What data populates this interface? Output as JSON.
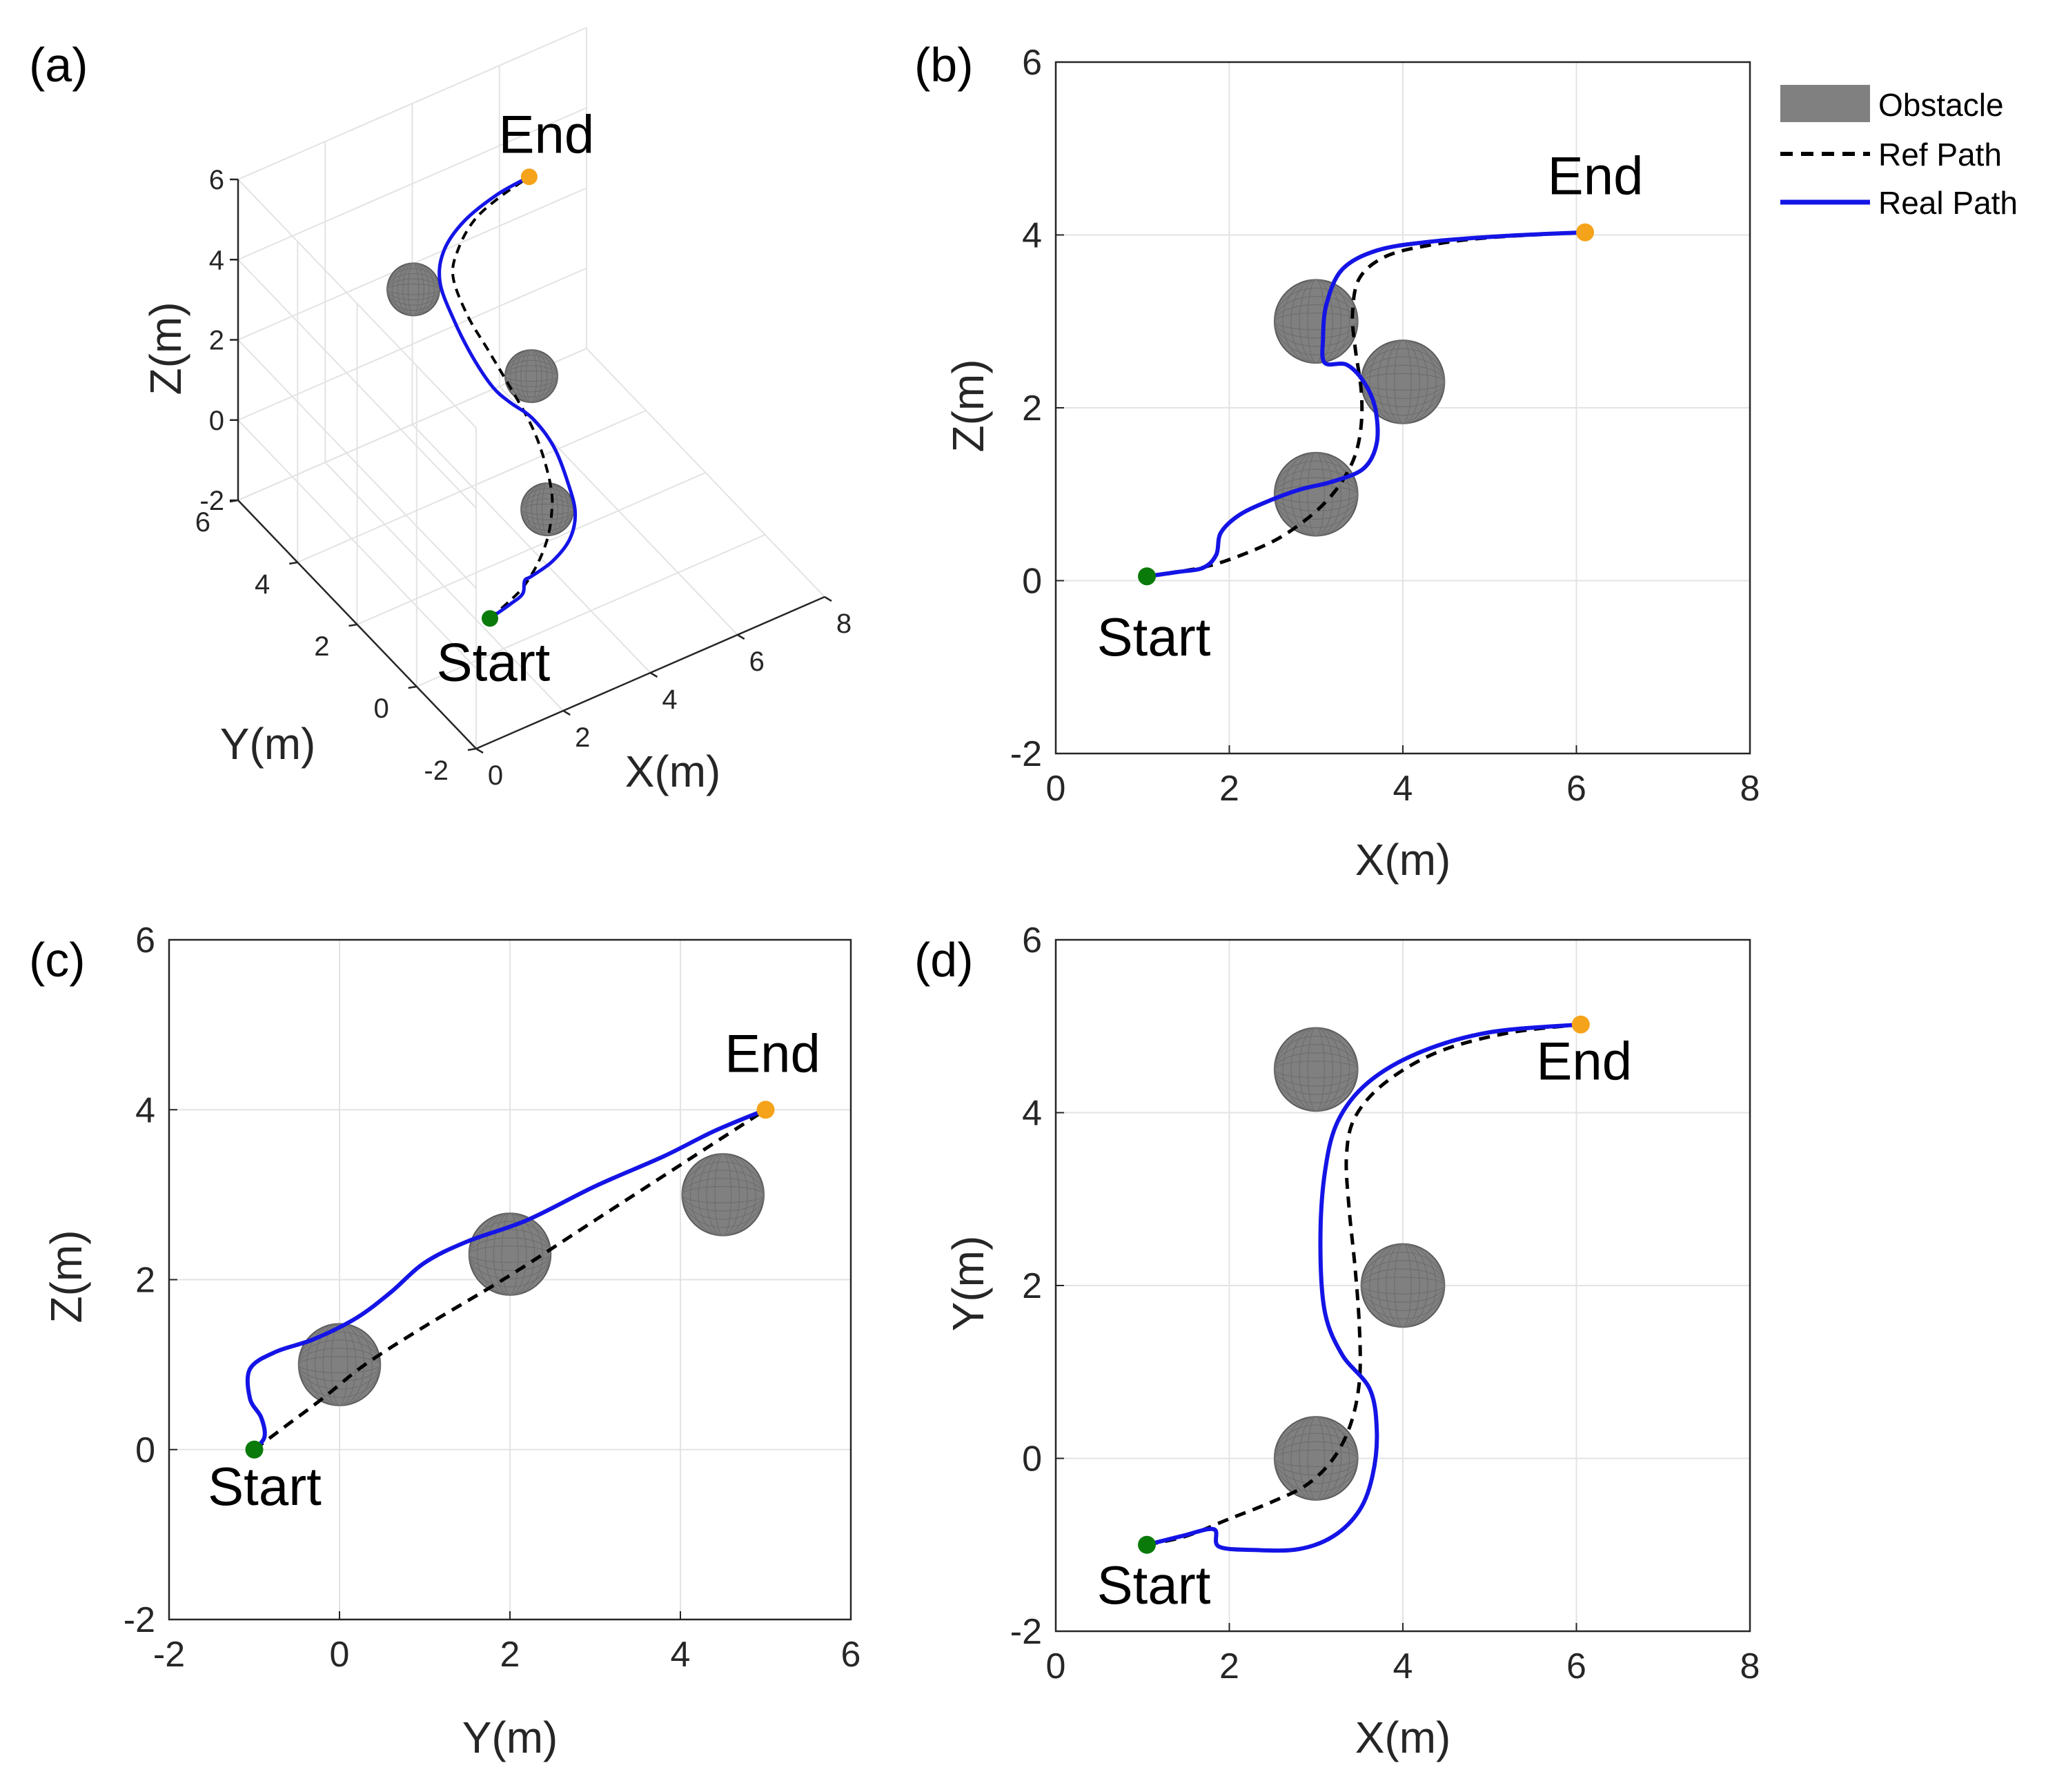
{
  "legend": {
    "obstacle": "Obstacle",
    "ref": "Ref Path",
    "real": "Real Path"
  },
  "colors": {
    "real": "#1414e6",
    "ref": "#000000",
    "obstacle_fill": "#808080",
    "obstacle_edge": "#5a5a5a",
    "start": "#0a7a0a",
    "end": "#f5a31a",
    "grid": "#e3e3e3"
  },
  "chart_data": [
    {
      "id": "a",
      "panel_label": "(a)",
      "type": "line3d",
      "xlabel": "X(m)",
      "ylabel": "Y(m)",
      "zlabel": "Z(m)",
      "xlim": [
        0,
        8
      ],
      "ylim": [
        -2,
        6
      ],
      "zlim": [
        -2,
        6
      ],
      "xticks": [
        "0",
        "2",
        "4",
        "6",
        "8"
      ],
      "yticks": [
        "-2",
        "0",
        "2",
        "4",
        "6"
      ],
      "zticks": [
        "-2",
        "0",
        "2",
        "4",
        "6"
      ],
      "start": {
        "label": "Start",
        "x": 1,
        "y": -1,
        "z": 0
      },
      "end": {
        "label": "End",
        "x": 6,
        "y": 5,
        "z": 4
      },
      "obstacles": [
        {
          "x": 3,
          "y": 0,
          "z": 1,
          "r": 0.46
        },
        {
          "x": 4,
          "y": 2,
          "z": 2.3,
          "r": 0.46
        },
        {
          "x": 3,
          "y": 4.5,
          "z": 3,
          "r": 0.46
        }
      ],
      "ref_path": [
        [
          1,
          -1,
          0
        ],
        [
          1.5,
          -0.9,
          0.1
        ],
        [
          1.9,
          -0.8,
          0.2
        ],
        [
          2.4,
          -0.55,
          0.35
        ],
        [
          2.8,
          -0.3,
          0.6
        ],
        [
          3.1,
          0,
          0.85
        ],
        [
          3.3,
          0.3,
          1.1
        ],
        [
          3.45,
          0.8,
          1.5
        ],
        [
          3.5,
          1.3,
          1.9
        ],
        [
          3.45,
          2,
          2.4
        ],
        [
          3.4,
          2.6,
          2.8
        ],
        [
          3.35,
          3.2,
          3.2
        ],
        [
          3.5,
          3.9,
          3.55
        ],
        [
          3.9,
          4.3,
          3.75
        ],
        [
          4.5,
          4.65,
          3.9
        ],
        [
          5.2,
          4.85,
          3.97
        ],
        [
          6,
          5,
          4
        ]
      ],
      "real_path": [
        [
          1,
          -1,
          0
        ],
        [
          1.5,
          -0.95,
          0.08
        ],
        [
          1.82,
          -0.9,
          0.15
        ],
        [
          1.9,
          -0.85,
          0.4
        ],
        [
          1.95,
          -1,
          0.6
        ],
        [
          2.4,
          -1.05,
          0.8
        ],
        [
          2.9,
          -0.9,
          1.0
        ],
        [
          3.3,
          -0.5,
          1.15
        ],
        [
          3.55,
          0.1,
          1.3
        ],
        [
          3.7,
          0.8,
          1.6
        ],
        [
          3.55,
          1.3,
          2.0
        ],
        [
          3.25,
          1.6,
          2.3
        ],
        [
          3.05,
          1.9,
          2.55
        ],
        [
          3.0,
          2.5,
          2.85
        ],
        [
          3.05,
          3.2,
          3.2
        ],
        [
          3.2,
          3.9,
          3.55
        ],
        [
          3.6,
          4.35,
          3.8
        ],
        [
          4.3,
          4.7,
          3.93
        ],
        [
          5.2,
          4.92,
          3.99
        ],
        [
          6,
          5,
          4
        ]
      ]
    },
    {
      "id": "b",
      "panel_label": "(b)",
      "type": "line",
      "xlabel": "X(m)",
      "ylabel": "Z(m)",
      "xlim": [
        0,
        8
      ],
      "ylim": [
        -2,
        6
      ],
      "xticks": [
        "0",
        "2",
        "4",
        "6",
        "8"
      ],
      "yticks": [
        "-2",
        "0",
        "2",
        "4",
        "6"
      ],
      "start": {
        "label": "Start",
        "x": 1.05,
        "y": 0.05
      },
      "end": {
        "label": "End",
        "x": 6.1,
        "y": 4.03
      },
      "obstacles": [
        {
          "x": 3.0,
          "y": 3.0,
          "r": 0.48
        },
        {
          "x": 4.0,
          "y": 2.3,
          "r": 0.48
        },
        {
          "x": 3.0,
          "y": 1.0,
          "r": 0.48
        }
      ],
      "ref_path": [
        [
          1.05,
          0.05
        ],
        [
          1.4,
          0.1
        ],
        [
          1.8,
          0.18
        ],
        [
          2.2,
          0.32
        ],
        [
          2.55,
          0.48
        ],
        [
          2.85,
          0.68
        ],
        [
          3.1,
          0.9
        ],
        [
          3.3,
          1.15
        ],
        [
          3.45,
          1.45
        ],
        [
          3.52,
          1.8
        ],
        [
          3.52,
          2.2
        ],
        [
          3.45,
          2.7
        ],
        [
          3.42,
          3.1
        ],
        [
          3.5,
          3.5
        ],
        [
          3.8,
          3.75
        ],
        [
          4.3,
          3.88
        ],
        [
          5.0,
          3.97
        ],
        [
          6.1,
          4.03
        ]
      ],
      "real_path": [
        [
          1.05,
          0.05
        ],
        [
          1.4,
          0.1
        ],
        [
          1.7,
          0.15
        ],
        [
          1.85,
          0.3
        ],
        [
          1.9,
          0.55
        ],
        [
          2.1,
          0.75
        ],
        [
          2.4,
          0.9
        ],
        [
          2.8,
          1.05
        ],
        [
          3.2,
          1.15
        ],
        [
          3.55,
          1.3
        ],
        [
          3.7,
          1.6
        ],
        [
          3.68,
          2.0
        ],
        [
          3.55,
          2.3
        ],
        [
          3.35,
          2.5
        ],
        [
          3.1,
          2.52
        ],
        [
          3.08,
          2.8
        ],
        [
          3.12,
          3.2
        ],
        [
          3.3,
          3.6
        ],
        [
          3.7,
          3.82
        ],
        [
          4.3,
          3.92
        ],
        [
          5.2,
          3.99
        ],
        [
          6.1,
          4.03
        ]
      ]
    },
    {
      "id": "c",
      "panel_label": "(c)",
      "type": "line",
      "xlabel": "Y(m)",
      "ylabel": "Z(m)",
      "xlim": [
        -2,
        6
      ],
      "ylim": [
        -2,
        6
      ],
      "xticks": [
        "-2",
        "0",
        "2",
        "4",
        "6"
      ],
      "yticks": [
        "-2",
        "0",
        "2",
        "4",
        "6"
      ],
      "start": {
        "label": "Start",
        "x": -1,
        "y": 0
      },
      "end": {
        "label": "End",
        "x": 5,
        "y": 4
      },
      "obstacles": [
        {
          "x": 0,
          "y": 1,
          "r": 0.48
        },
        {
          "x": 2,
          "y": 2.3,
          "r": 0.48
        },
        {
          "x": 4.5,
          "y": 3,
          "r": 0.48
        }
      ],
      "ref_path": [
        [
          -1,
          0
        ],
        [
          -0.6,
          0.3
        ],
        [
          -0.2,
          0.6
        ],
        [
          0.3,
          1.0
        ],
        [
          1,
          1.45
        ],
        [
          2,
          2.05
        ],
        [
          3,
          2.7
        ],
        [
          4,
          3.35
        ],
        [
          5,
          4
        ]
      ],
      "real_path": [
        [
          -1,
          0
        ],
        [
          -0.88,
          0.15
        ],
        [
          -0.92,
          0.38
        ],
        [
          -1.05,
          0.6
        ],
        [
          -1.05,
          0.95
        ],
        [
          -0.75,
          1.15
        ],
        [
          -0.3,
          1.3
        ],
        [
          0.2,
          1.55
        ],
        [
          0.6,
          1.85
        ],
        [
          1.0,
          2.2
        ],
        [
          1.5,
          2.45
        ],
        [
          2.2,
          2.7
        ],
        [
          3.0,
          3.1
        ],
        [
          3.8,
          3.45
        ],
        [
          4.4,
          3.75
        ],
        [
          5,
          4
        ]
      ]
    },
    {
      "id": "d",
      "panel_label": "(d)",
      "type": "line",
      "xlabel": "X(m)",
      "ylabel": "Y(m)",
      "xlim": [
        0,
        8
      ],
      "ylim": [
        -2,
        6
      ],
      "xticks": [
        "0",
        "2",
        "4",
        "6",
        "8"
      ],
      "yticks": [
        "-2",
        "0",
        "2",
        "4",
        "6"
      ],
      "start": {
        "label": "Start",
        "x": 1.05,
        "y": -1
      },
      "end": {
        "label": "End",
        "x": 6.05,
        "y": 5.02
      },
      "obstacles": [
        {
          "x": 3.0,
          "y": 4.5,
          "r": 0.48
        },
        {
          "x": 4.0,
          "y": 2.0,
          "r": 0.48
        },
        {
          "x": 3.0,
          "y": 0.0,
          "r": 0.48
        }
      ],
      "ref_path": [
        [
          1.05,
          -1
        ],
        [
          1.5,
          -0.9
        ],
        [
          2.0,
          -0.7
        ],
        [
          2.5,
          -0.5
        ],
        [
          2.9,
          -0.3
        ],
        [
          3.2,
          0
        ],
        [
          3.4,
          0.4
        ],
        [
          3.5,
          0.9
        ],
        [
          3.5,
          1.5
        ],
        [
          3.45,
          2.2
        ],
        [
          3.38,
          2.9
        ],
        [
          3.35,
          3.5
        ],
        [
          3.45,
          3.95
        ],
        [
          3.8,
          4.35
        ],
        [
          4.4,
          4.7
        ],
        [
          5.2,
          4.92
        ],
        [
          6.05,
          5.02
        ]
      ],
      "real_path": [
        [
          1.05,
          -1
        ],
        [
          1.45,
          -0.9
        ],
        [
          1.82,
          -0.82
        ],
        [
          1.88,
          -1.02
        ],
        [
          2.3,
          -1.06
        ],
        [
          2.8,
          -1.05
        ],
        [
          3.2,
          -0.9
        ],
        [
          3.5,
          -0.6
        ],
        [
          3.65,
          -0.2
        ],
        [
          3.7,
          0.3
        ],
        [
          3.62,
          0.8
        ],
        [
          3.3,
          1.2
        ],
        [
          3.1,
          1.7
        ],
        [
          3.05,
          2.5
        ],
        [
          3.1,
          3.3
        ],
        [
          3.25,
          3.9
        ],
        [
          3.6,
          4.35
        ],
        [
          4.2,
          4.7
        ],
        [
          5.0,
          4.93
        ],
        [
          6.05,
          5.02
        ]
      ]
    }
  ]
}
